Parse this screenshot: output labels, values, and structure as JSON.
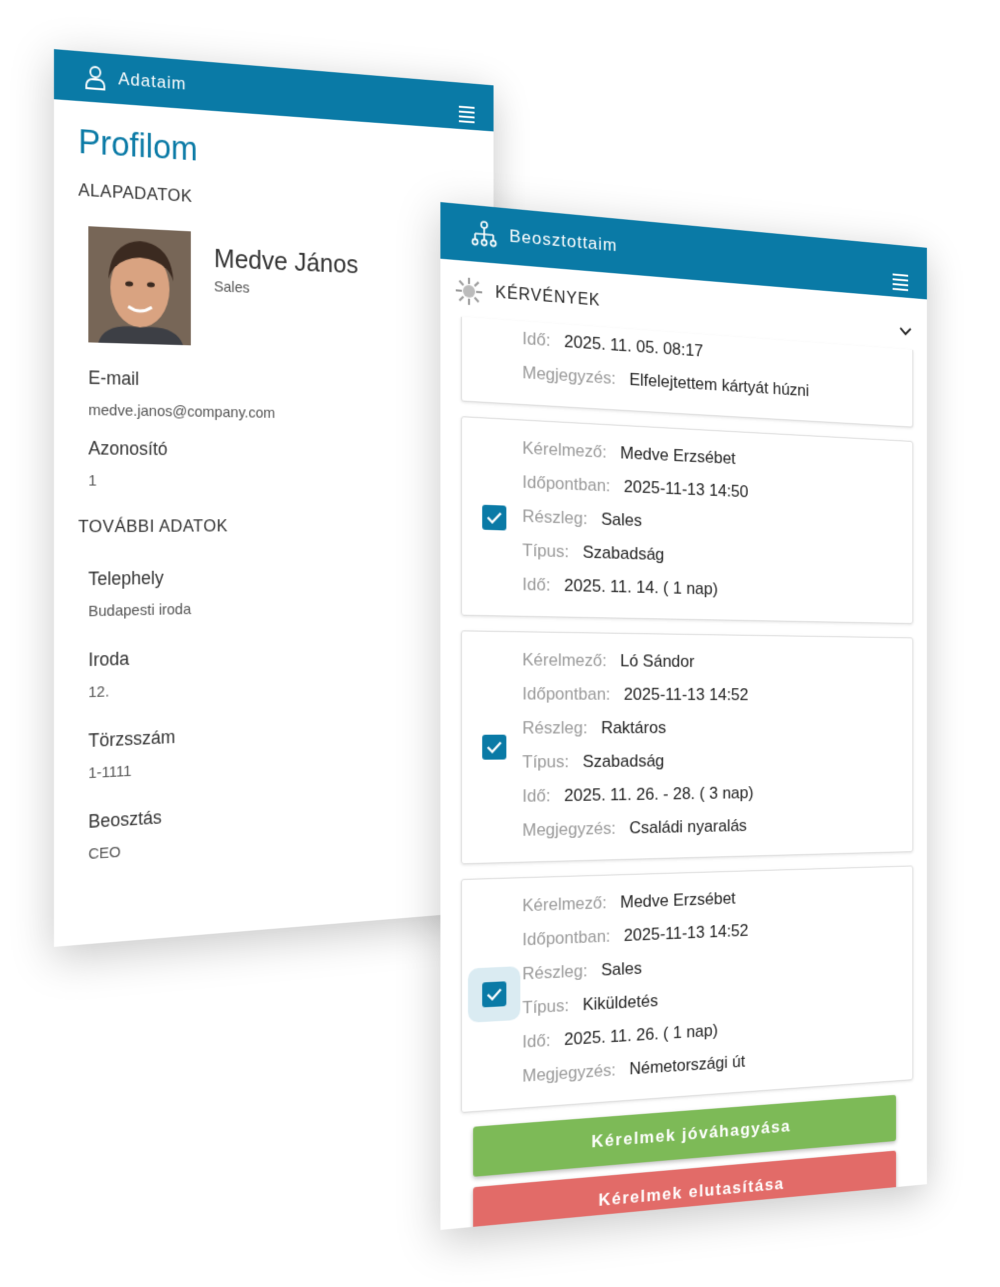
{
  "profile_screen": {
    "header_title": "Adataim",
    "icons": {
      "header": "user-icon",
      "menu": "menu-icon"
    },
    "page_title": "Profilom",
    "basic_section": "ALAPADATOK",
    "name": "Medve János",
    "role": "Sales",
    "basic_fields": [
      {
        "label": "E-mail",
        "value": "medve.janos@company.com"
      },
      {
        "label": "Azonosító",
        "value": "1"
      }
    ],
    "more_section": "TOVÁBBI ADATOK",
    "more_fields": [
      {
        "label": "Telephely",
        "value": "Budapesti iroda"
      },
      {
        "label": "Iroda",
        "value": "12."
      },
      {
        "label": "Törzsszám",
        "value": "1-1111"
      },
      {
        "label": "Beosztás",
        "value": "CEO"
      }
    ]
  },
  "subordinates_screen": {
    "header_title": "Beosztottaim",
    "icons": {
      "header": "org-chart-icon",
      "menu": "menu-icon",
      "section": "sun-icon",
      "collapse": "chevron-down-icon",
      "checkbox": "check-icon"
    },
    "section_title": "KÉRVÉNYEK",
    "partial_card": [
      {
        "k": "Idő:",
        "v": "2025. 11. 05. 08:17"
      },
      {
        "k": "Megjegyzés:",
        "v": "Elfelejtettem kártyát húzni"
      }
    ],
    "cards": [
      {
        "checked": true,
        "rows": [
          {
            "k": "Kérelmező:",
            "v": "Medve Erzsébet"
          },
          {
            "k": "Időpontban:",
            "v": "2025-11-13 14:50"
          },
          {
            "k": "Részleg:",
            "v": "Sales"
          },
          {
            "k": "Típus:",
            "v": "Szabadság"
          },
          {
            "k": "Idő:",
            "v": "2025. 11. 14.   ( 1 nap)"
          }
        ]
      },
      {
        "checked": true,
        "rows": [
          {
            "k": "Kérelmező:",
            "v": "Ló Sándor"
          },
          {
            "k": "Időpontban:",
            "v": "2025-11-13 14:52"
          },
          {
            "k": "Részleg:",
            "v": "Raktáros"
          },
          {
            "k": "Típus:",
            "v": "Szabadság"
          },
          {
            "k": "Idő:",
            "v": "2025. 11. 26. - 28.   ( 3 nap)"
          },
          {
            "k": "Megjegyzés:",
            "v": "Családi nyaralás"
          }
        ]
      },
      {
        "checked": true,
        "focused": true,
        "rows": [
          {
            "k": "Kérelmező:",
            "v": "Medve Erzsébet"
          },
          {
            "k": "Időpontban:",
            "v": "2025-11-13 14:52"
          },
          {
            "k": "Részleg:",
            "v": "Sales"
          },
          {
            "k": "Típus:",
            "v": "Kiküldetés"
          },
          {
            "k": "Idő:",
            "v": "2025. 11. 26.   ( 1 nap)"
          },
          {
            "k": "Megjegyzés:",
            "v": "Németországi út"
          }
        ]
      }
    ],
    "approve_label": "Kérelmek jóváhagyása",
    "reject_label": "Kérelmek elutasítása",
    "colors": {
      "header": "#0a7aa6",
      "approve": "#7dba57",
      "reject": "#e26b68"
    }
  }
}
